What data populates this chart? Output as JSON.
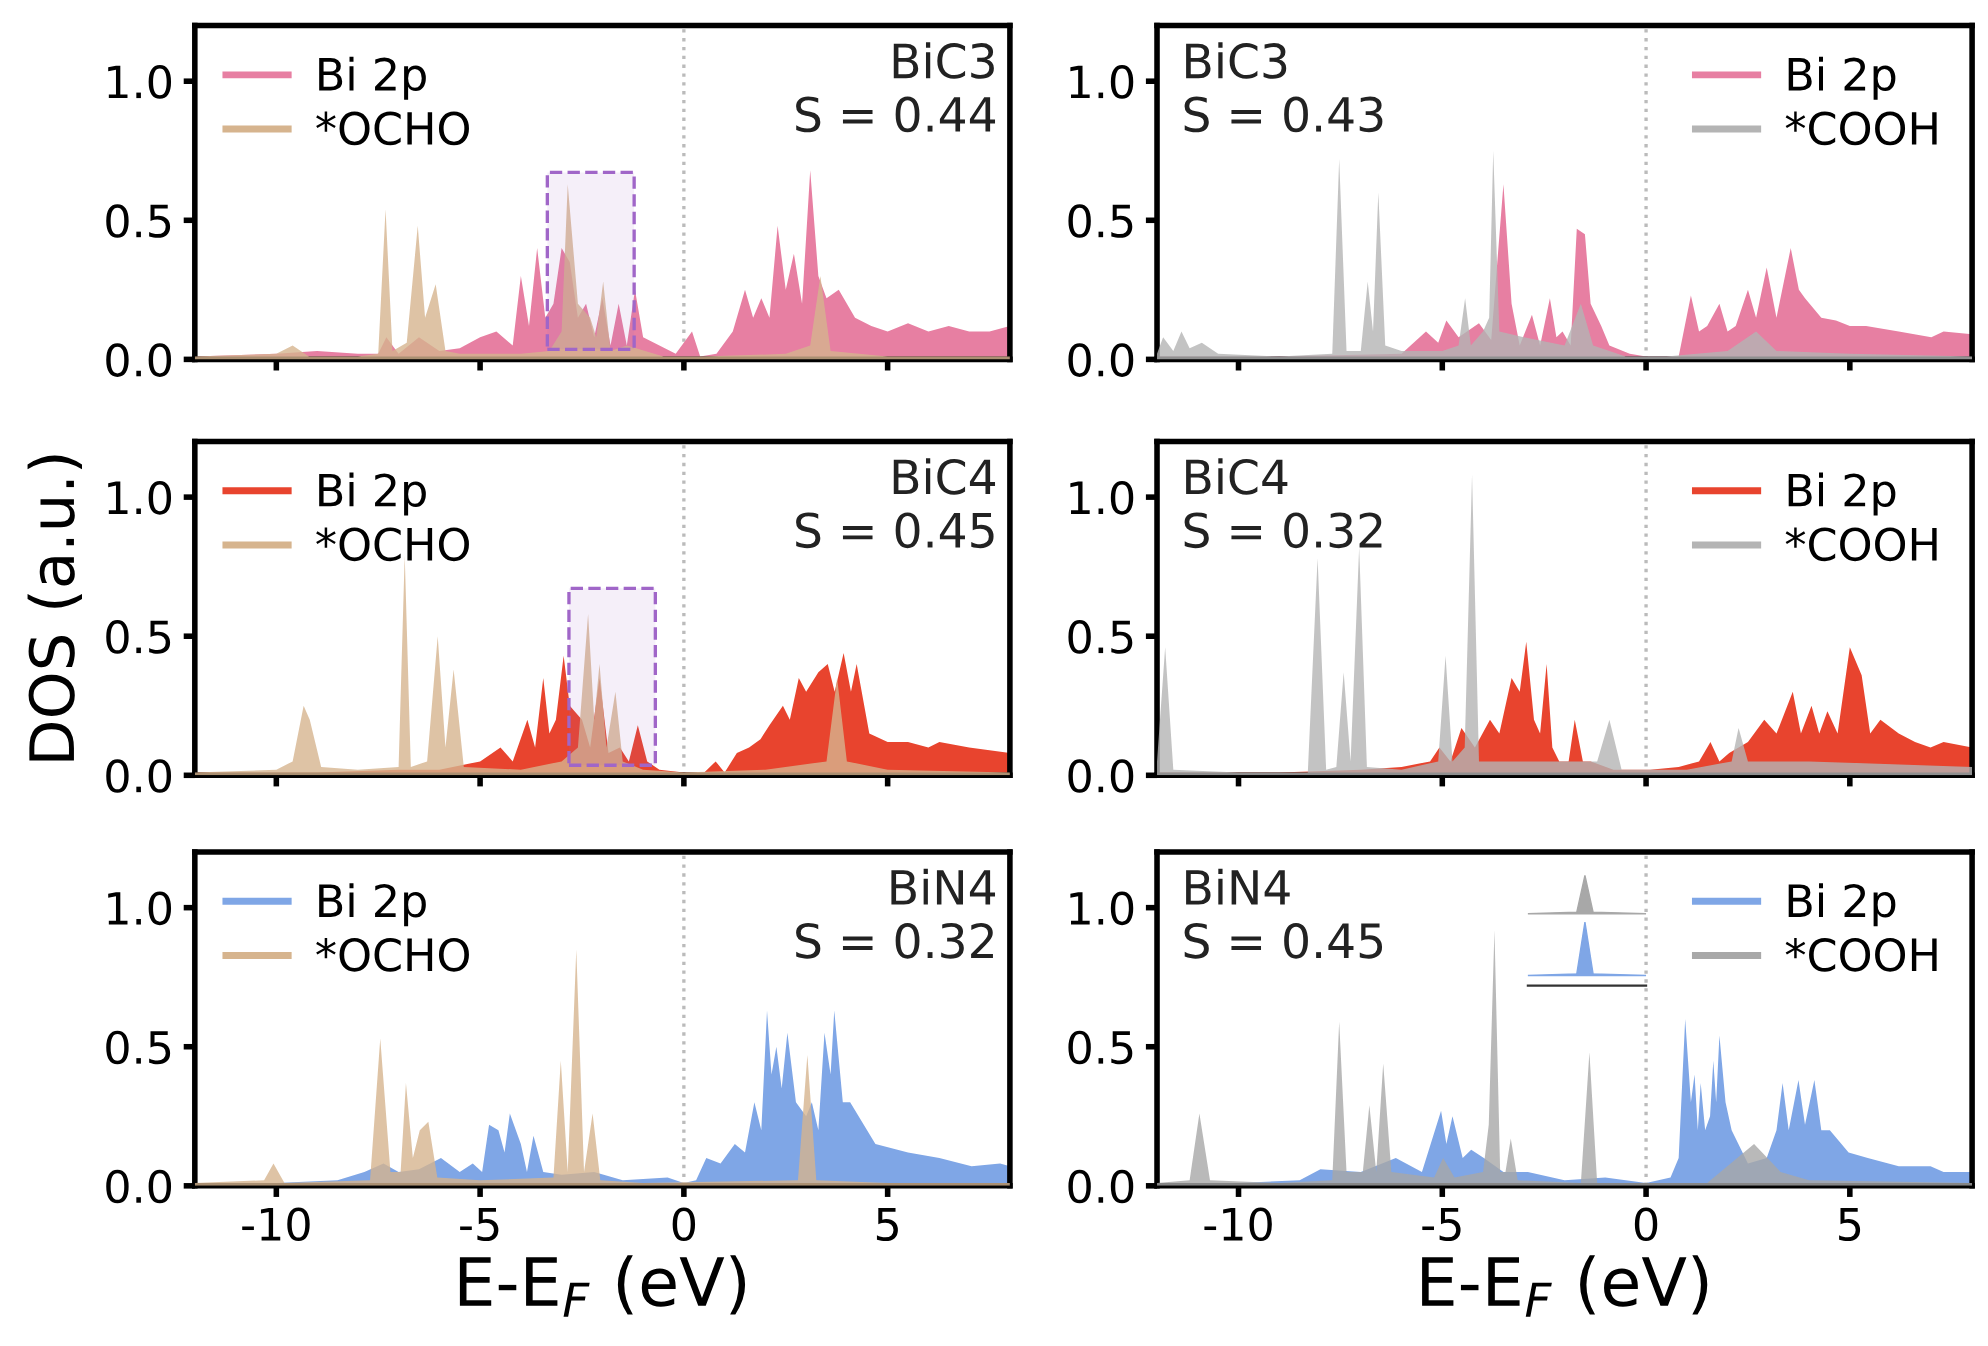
{
  "chart_data": [
    {
      "type": "area",
      "xlim": [
        -12,
        8
      ],
      "xticks": [
        -10,
        -5,
        0,
        5
      ],
      "ylim": [
        0,
        1.2
      ],
      "yticks": [
        {
          "value": 0,
          "label": "0.0"
        },
        {
          "value": 0.5,
          "label": "0.5"
        },
        {
          "value": 1.0,
          "label": "1.0"
        }
      ],
      "tick_labels": "y",
      "legend": "top left",
      "annotations": [
        "BiC3",
        "S = 0.44"
      ],
      "ref_lines": [
        {
          "axis": "x",
          "value": 0,
          "color": "#bbbbbb",
          "line_style": "dotted"
        }
      ],
      "bands": [
        {
          "axis": "x",
          "from": -3.35,
          "to": -1.22,
          "color": "#a066c8"
        }
      ],
      "series": [
        {
          "name": "Bi 2p",
          "color": "#e77fa2",
          "x": [
            -12,
            -10,
            -9,
            -8,
            -7.5,
            -7.3,
            -7,
            -6.5,
            -6,
            -5.5,
            -5,
            -4.6,
            -4.2,
            -4,
            -3.8,
            -3.6,
            -3.4,
            -3.2,
            -3,
            -2.8,
            -2.6,
            -2.4,
            -2.2,
            -2,
            -1.8,
            -1.6,
            -1.4,
            -1.2,
            -1,
            -0.6,
            -0.2,
            0.2,
            0.4,
            0.8,
            1.2,
            1.5,
            1.7,
            1.9,
            2.1,
            2.3,
            2.5,
            2.7,
            2.9,
            3.1,
            3.3,
            3.5,
            3.8,
            4.2,
            4.6,
            5,
            5.5,
            6,
            6.5,
            7,
            7.5,
            8
          ],
          "values": [
            0.01,
            0.02,
            0.03,
            0.02,
            0.02,
            0.08,
            0.02,
            0.08,
            0.03,
            0.04,
            0.08,
            0.1,
            0.05,
            0.3,
            0.12,
            0.4,
            0.15,
            0.2,
            0.4,
            0.35,
            0.15,
            0.2,
            0.08,
            0.22,
            0.05,
            0.2,
            0.05,
            0.25,
            0.08,
            0.05,
            0.02,
            0.1,
            0.01,
            0.02,
            0.1,
            0.25,
            0.15,
            0.22,
            0.15,
            0.48,
            0.25,
            0.38,
            0.2,
            0.68,
            0.3,
            0.22,
            0.25,
            0.15,
            0.12,
            0.1,
            0.13,
            0.1,
            0.12,
            0.1,
            0.1,
            0.12
          ]
        },
        {
          "name": "*OCHO",
          "color": "#d6b48e",
          "x": [
            -12,
            -10,
            -9.6,
            -9.2,
            -8,
            -7.5,
            -7.32,
            -7.15,
            -6.8,
            -6.53,
            -6.35,
            -6.09,
            -5.85,
            -5.5,
            -4,
            -3.3,
            -3.0,
            -2.85,
            -2.6,
            -2.3,
            -2.15,
            -1.98,
            -1.8,
            -1.4,
            -0.5,
            0.5,
            2.5,
            3.1,
            3.35,
            3.6,
            5,
            8
          ],
          "values": [
            0.01,
            0.02,
            0.05,
            0.01,
            0.01,
            0.02,
            0.54,
            0.03,
            0.06,
            0.48,
            0.15,
            0.27,
            0.03,
            0.02,
            0.02,
            0.03,
            0.1,
            0.63,
            0.2,
            0.15,
            0.08,
            0.28,
            0.03,
            0.05,
            0.01,
            0.01,
            0.02,
            0.05,
            0.3,
            0.03,
            0.01,
            0.01
          ]
        }
      ]
    },
    {
      "type": "area",
      "xlim": [
        -12,
        8
      ],
      "xticks": [
        -10,
        -5,
        0,
        5
      ],
      "ylim": [
        0,
        1.2
      ],
      "yticks": [
        {
          "value": 0,
          "label": "0.0"
        },
        {
          "value": 0.5,
          "label": "0.5"
        },
        {
          "value": 1.0,
          "label": "1.0"
        }
      ],
      "tick_labels": "y",
      "legend": "top right",
      "annotations": [
        "BiC3",
        "S = 0.43"
      ],
      "ref_lines": [
        {
          "axis": "x",
          "value": 0,
          "color": "#bbbbbb",
          "line_style": "dotted"
        }
      ],
      "series": [
        {
          "name": "Bi 2p",
          "color": "#e77fa2",
          "x": [
            -12,
            -9,
            -6,
            -5.4,
            -5.1,
            -4.9,
            -4.6,
            -4.1,
            -3.8,
            -3.5,
            -3.3,
            -3.1,
            -2.8,
            -2.6,
            -2.36,
            -2.2,
            -2.05,
            -1.85,
            -1.7,
            -1.5,
            -1.36,
            -1.1,
            -0.9,
            -0.4,
            0,
            0.5,
            0.8,
            1.1,
            1.3,
            1.5,
            1.8,
            2,
            2.2,
            2.5,
            2.7,
            2.96,
            3.2,
            3.55,
            3.75,
            3.9,
            4.3,
            4.66,
            5,
            5.4,
            6.2,
            7,
            7.3,
            8
          ],
          "values": [
            0.01,
            0.01,
            0.02,
            0.1,
            0.06,
            0.14,
            0.08,
            0.13,
            0.07,
            0.63,
            0.2,
            0.05,
            0.16,
            0.05,
            0.22,
            0.08,
            0.1,
            0.05,
            0.47,
            0.45,
            0.2,
            0.12,
            0.05,
            0.02,
            0.01,
            0.01,
            0.01,
            0.23,
            0.1,
            0.12,
            0.2,
            0.1,
            0.12,
            0.25,
            0.15,
            0.33,
            0.15,
            0.4,
            0.25,
            0.22,
            0.15,
            0.14,
            0.12,
            0.12,
            0.1,
            0.08,
            0.1,
            0.09
          ]
        },
        {
          "name": "*COOH",
          "color": "#b4b4b4",
          "x": [
            -12,
            -11.85,
            -11.6,
            -11.4,
            -11.2,
            -10.9,
            -10.5,
            -9,
            -7.7,
            -7.53,
            -7.35,
            -7,
            -6.83,
            -6.7,
            -6.57,
            -6.4,
            -6,
            -5,
            -4.6,
            -4.44,
            -4.3,
            -4,
            -3.85,
            -3.75,
            -3.6,
            -3,
            -2,
            -1.6,
            -1.3,
            -0.5,
            0.5,
            2,
            2.7,
            3.2,
            5,
            8
          ],
          "values": [
            0.02,
            0.08,
            0.03,
            0.1,
            0.04,
            0.06,
            0.02,
            0.01,
            0.02,
            0.72,
            0.03,
            0.03,
            0.28,
            0.1,
            0.6,
            0.05,
            0.03,
            0.03,
            0.05,
            0.22,
            0.05,
            0.1,
            0.15,
            0.75,
            0.1,
            0.08,
            0.05,
            0.2,
            0.05,
            0.01,
            0.01,
            0.03,
            0.1,
            0.03,
            0.02,
            0.01
          ]
        }
      ]
    },
    {
      "type": "area",
      "xlim": [
        -12,
        8
      ],
      "xticks": [
        -10,
        -5,
        0,
        5
      ],
      "ylim": [
        0,
        1.2
      ],
      "yticks": [
        {
          "value": 0,
          "label": "0.0"
        },
        {
          "value": 0.5,
          "label": "0.5"
        },
        {
          "value": 1.0,
          "label": "1.0"
        }
      ],
      "tick_labels": "y",
      "legend": "top left",
      "ylabel": "DOS (a.u.)",
      "annotations": [
        "BiC4",
        "S = 0.45"
      ],
      "ref_lines": [
        {
          "axis": "x",
          "value": 0,
          "color": "#bbbbbb",
          "line_style": "dotted"
        }
      ],
      "bands": [
        {
          "axis": "x",
          "from": -2.82,
          "to": -0.7,
          "color": "#a066c8"
        }
      ],
      "series": [
        {
          "name": "Bi 2p",
          "color": "#e8442e",
          "x": [
            -12,
            -9,
            -7,
            -6,
            -5,
            -4.5,
            -4.2,
            -3.84,
            -3.65,
            -3.45,
            -3.3,
            -3.14,
            -2.95,
            -2.8,
            -2.5,
            -2.3,
            -2.07,
            -1.85,
            -1.57,
            -1.35,
            -1.13,
            -0.9,
            -0.6,
            0,
            0.5,
            0.78,
            1,
            1.3,
            1.6,
            1.88,
            2.1,
            2.43,
            2.6,
            2.82,
            3,
            3.3,
            3.53,
            3.7,
            3.92,
            4.1,
            4.24,
            4.55,
            5,
            5.5,
            6,
            6.27,
            7,
            7.5,
            8
          ],
          "values": [
            0.01,
            0.01,
            0.02,
            0.02,
            0.05,
            0.1,
            0.05,
            0.2,
            0.1,
            0.35,
            0.15,
            0.2,
            0.43,
            0.25,
            0.2,
            0.1,
            0.35,
            0.08,
            0.1,
            0.05,
            0.18,
            0.05,
            0.02,
            0.01,
            0.01,
            0.05,
            0.01,
            0.08,
            0.1,
            0.13,
            0.18,
            0.25,
            0.2,
            0.35,
            0.3,
            0.37,
            0.4,
            0.3,
            0.44,
            0.3,
            0.4,
            0.15,
            0.12,
            0.12,
            0.1,
            0.12,
            0.1,
            0.09,
            0.08
          ]
        },
        {
          "name": "*OCHO",
          "color": "#d6b48e",
          "x": [
            -12,
            -10,
            -9.6,
            -9.33,
            -9.18,
            -8.9,
            -8,
            -7,
            -6.85,
            -6.7,
            -6.3,
            -6.04,
            -5.85,
            -5.65,
            -5.4,
            -4,
            -3,
            -2.6,
            -2.35,
            -2.2,
            -2.07,
            -1.9,
            -1.68,
            -1.5,
            -1,
            0,
            2,
            3.5,
            3.76,
            4,
            5,
            8
          ],
          "values": [
            0.01,
            0.02,
            0.05,
            0.25,
            0.2,
            0.03,
            0.02,
            0.03,
            0.79,
            0.03,
            0.05,
            0.5,
            0.1,
            0.38,
            0.03,
            0.02,
            0.05,
            0.1,
            0.58,
            0.2,
            0.4,
            0.1,
            0.3,
            0.05,
            0.02,
            0.01,
            0.02,
            0.05,
            0.35,
            0.05,
            0.02,
            0.01
          ]
        }
      ]
    },
    {
      "type": "area",
      "xlim": [
        -12,
        8
      ],
      "xticks": [
        -10,
        -5,
        0,
        5
      ],
      "ylim": [
        0,
        1.2
      ],
      "yticks": [
        {
          "value": 0,
          "label": "0.0"
        },
        {
          "value": 0.5,
          "label": "0.5"
        },
        {
          "value": 1.0,
          "label": "1.0"
        }
      ],
      "tick_labels": "y",
      "legend": "top right",
      "annotations": [
        "BiC4",
        "S = 0.32"
      ],
      "ref_lines": [
        {
          "axis": "x",
          "value": 0,
          "color": "#bbbbbb",
          "line_style": "dotted"
        }
      ],
      "series": [
        {
          "name": "Bi 2p",
          "color": "#e8442e",
          "x": [
            -12,
            -9,
            -7,
            -6,
            -5.3,
            -5.07,
            -4.8,
            -4.53,
            -4.2,
            -3.83,
            -3.6,
            -3.3,
            -3.1,
            -2.94,
            -2.75,
            -2.6,
            -2.44,
            -2.3,
            -2.13,
            -1.9,
            -1.75,
            -1.55,
            -1.36,
            -0.8,
            0.1,
            0.8,
            1.3,
            1.58,
            1.8,
            2.04,
            2.5,
            2.9,
            3.2,
            3.6,
            3.8,
            4.06,
            4.25,
            4.45,
            4.7,
            5,
            5.29,
            5.5,
            5.75,
            6.2,
            6.6,
            6.98,
            7.3,
            8
          ],
          "values": [
            0.01,
            0.01,
            0.02,
            0.03,
            0.05,
            0.1,
            0.05,
            0.17,
            0.1,
            0.2,
            0.15,
            0.35,
            0.3,
            0.48,
            0.2,
            0.15,
            0.4,
            0.1,
            0.05,
            0.05,
            0.2,
            0.05,
            0.05,
            0.02,
            0.02,
            0.03,
            0.05,
            0.12,
            0.05,
            0.08,
            0.12,
            0.2,
            0.15,
            0.3,
            0.15,
            0.25,
            0.15,
            0.23,
            0.15,
            0.46,
            0.36,
            0.15,
            0.2,
            0.15,
            0.12,
            0.1,
            0.12,
            0.1
          ]
        },
        {
          "name": "*COOH",
          "color": "#b4b4b4",
          "x": [
            -12,
            -11.8,
            -11.6,
            -10,
            -8.3,
            -8.06,
            -7.85,
            -7.6,
            -7.42,
            -7.25,
            -7.04,
            -6.85,
            -6,
            -5.1,
            -4.92,
            -4.75,
            -4.45,
            -4.27,
            -4.1,
            -3,
            -1.2,
            -0.9,
            -0.6,
            1,
            2.1,
            2.27,
            2.5,
            4,
            8
          ],
          "values": [
            0.05,
            0.46,
            0.02,
            0.01,
            0.01,
            0.78,
            0.02,
            0.03,
            0.37,
            0.05,
            0.82,
            0.03,
            0.02,
            0.05,
            0.43,
            0.05,
            0.1,
            1.08,
            0.05,
            0.05,
            0.05,
            0.2,
            0.02,
            0.02,
            0.05,
            0.17,
            0.05,
            0.05,
            0.03
          ]
        }
      ]
    },
    {
      "type": "area",
      "xlim": [
        -12,
        8
      ],
      "xticks": [
        -10,
        -5,
        0,
        5
      ],
      "ylim": [
        0,
        1.2
      ],
      "yticks": [
        {
          "value": 0,
          "label": "0.0"
        },
        {
          "value": 0.5,
          "label": "0.5"
        },
        {
          "value": 1.0,
          "label": "1.0"
        }
      ],
      "legend": "top left",
      "xlabel": "E-E$_{F}$ (eV)",
      "annotations": [
        "BiN4",
        "S = 0.32"
      ],
      "ref_lines": [
        {
          "axis": "x",
          "value": 0,
          "color": "#bbbbbb",
          "line_style": "dotted"
        }
      ],
      "series": [
        {
          "name": "Bi 2p",
          "color": "#7fa6e6",
          "x": [
            -12,
            -10,
            -8.5,
            -7.84,
            -7.37,
            -7,
            -6.5,
            -5.96,
            -5.5,
            -5.18,
            -4.95,
            -4.78,
            -4.55,
            -4.4,
            -4.27,
            -4,
            -3.85,
            -3.69,
            -3.45,
            -3,
            -2.2,
            -1.5,
            -0.4,
            0,
            0.3,
            0.55,
            0.9,
            1.25,
            1.5,
            1.73,
            1.9,
            2.04,
            2.15,
            2.27,
            2.4,
            2.54,
            2.75,
            3,
            3.14,
            3.3,
            3.45,
            3.6,
            3.69,
            3.9,
            4.08,
            4.7,
            5.5,
            6.27,
            7.06,
            7.76,
            8
          ],
          "values": [
            0.01,
            0.01,
            0.02,
            0.05,
            0.08,
            0.05,
            0.06,
            0.1,
            0.05,
            0.08,
            0.05,
            0.22,
            0.2,
            0.12,
            0.26,
            0.15,
            0.05,
            0.18,
            0.05,
            0.04,
            0.05,
            0.02,
            0.03,
            0.01,
            0.02,
            0.1,
            0.08,
            0.15,
            0.12,
            0.3,
            0.2,
            0.63,
            0.4,
            0.5,
            0.35,
            0.55,
            0.3,
            0.25,
            0.3,
            0.2,
            0.55,
            0.4,
            0.63,
            0.3,
            0.3,
            0.15,
            0.12,
            0.1,
            0.07,
            0.08,
            0.07
          ]
        },
        {
          "name": "*OCHO",
          "color": "#d6b48e",
          "x": [
            -12,
            -10.3,
            -10.07,
            -9.8,
            -7.7,
            -7.45,
            -7.2,
            -6.95,
            -6.82,
            -6.65,
            -6.48,
            -6.27,
            -6.05,
            -5,
            -3.2,
            -3.02,
            -2.85,
            -2.64,
            -2.45,
            -2.24,
            -2.05,
            -1,
            2.8,
            3.03,
            3.25,
            5,
            8
          ],
          "values": [
            0.01,
            0.02,
            0.08,
            0.01,
            0.02,
            0.53,
            0.05,
            0.05,
            0.37,
            0.1,
            0.2,
            0.23,
            0.03,
            0.02,
            0.03,
            0.45,
            0.05,
            0.85,
            0.05,
            0.26,
            0.02,
            0.01,
            0.02,
            0.47,
            0.02,
            0.01,
            0.01
          ]
        }
      ]
    },
    {
      "type": "area",
      "xlim": [
        -12,
        8
      ],
      "xticks": [
        -10,
        -5,
        0,
        5
      ],
      "ylim": [
        0,
        1.2
      ],
      "yticks": [
        {
          "value": 0,
          "label": "0.0"
        },
        {
          "value": 0.5,
          "label": "0.5"
        },
        {
          "value": 1.0,
          "label": "1.0"
        }
      ],
      "legend": "top right",
      "xlabel": "E-E$_{F}$ (eV)",
      "annotations": [
        "BiN4",
        "S = 0.45"
      ],
      "ref_lines": [
        {
          "axis": "x",
          "value": 0,
          "color": "#bbbbbb",
          "line_style": "dotted"
        }
      ],
      "series": [
        {
          "name": "Bi 2p",
          "color": "#7fa6e6",
          "x": [
            -12,
            -10,
            -8.5,
            -7.99,
            -7,
            -6.14,
            -5.5,
            -5.03,
            -4.9,
            -4.75,
            -4.5,
            -4.29,
            -3.98,
            -3.5,
            -2.9,
            -2,
            -1,
            0,
            0.6,
            0.8,
            0.96,
            1.1,
            1.19,
            1.27,
            1.34,
            1.45,
            1.57,
            1.65,
            1.72,
            1.8,
            1.95,
            2.1,
            2.5,
            2.96,
            3.2,
            3.35,
            3.5,
            3.74,
            3.9,
            4.13,
            4.3,
            4.51,
            4.97,
            5.44,
            6.2,
            6.98,
            7.3,
            8
          ],
          "values": [
            0.01,
            0.01,
            0.02,
            0.06,
            0.05,
            0.1,
            0.05,
            0.27,
            0.15,
            0.25,
            0.1,
            0.13,
            0.1,
            0.05,
            0.05,
            0.02,
            0.03,
            0.01,
            0.03,
            0.1,
            0.6,
            0.3,
            0.4,
            0.2,
            0.37,
            0.2,
            0.25,
            0.45,
            0.3,
            0.54,
            0.3,
            0.2,
            0.08,
            0.1,
            0.2,
            0.37,
            0.2,
            0.38,
            0.22,
            0.38,
            0.2,
            0.2,
            0.12,
            0.1,
            0.07,
            0.07,
            0.05,
            0.05
          ]
        },
        {
          "name": "*COOH",
          "color": "#a8a8a8",
          "x": [
            -12,
            -11.2,
            -10.96,
            -10.7,
            -9,
            -7.7,
            -7.53,
            -7.35,
            -6.95,
            -6.79,
            -6.62,
            -6.45,
            -6.25,
            -5.2,
            -4.98,
            -4.7,
            -4,
            -3.86,
            -3.72,
            -3.58,
            -3.45,
            -3.32,
            -3.15,
            -1.6,
            -1.39,
            -1.2,
            1.5,
            2.65,
            3.3,
            4,
            8
          ],
          "values": [
            0.01,
            0.02,
            0.26,
            0.02,
            0.01,
            0.02,
            0.59,
            0.05,
            0.05,
            0.29,
            0.05,
            0.44,
            0.05,
            0.03,
            0.1,
            0.03,
            0.05,
            0.22,
            0.92,
            0.05,
            0.05,
            0.17,
            0.02,
            0.01,
            0.48,
            0.01,
            0.01,
            0.15,
            0.05,
            0.02,
            0.01
          ]
        }
      ]
    }
  ]
}
